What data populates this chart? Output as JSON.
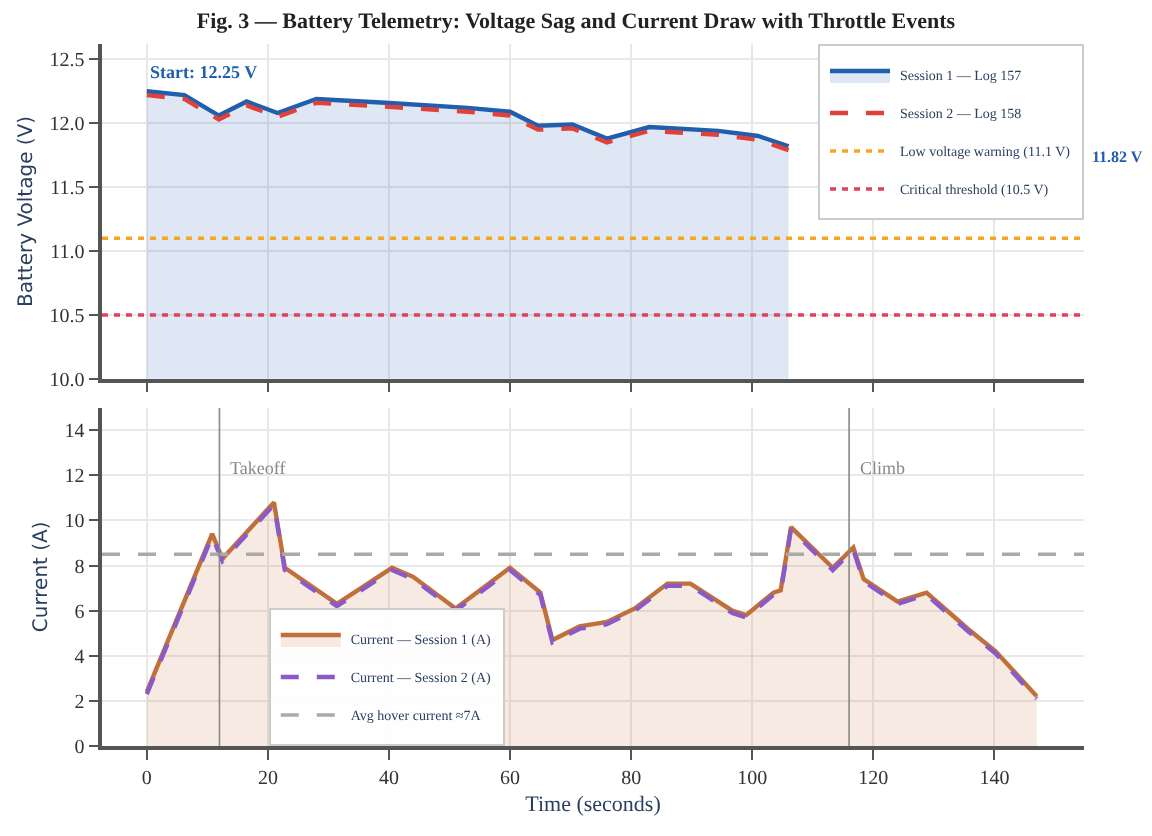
{
  "chart_data": [
    {
      "type": "line",
      "title": "Fig. 3 — Battery Telemetry: Voltage Sag and Current Draw with Throttle Events",
      "ylabel": "Battery Voltage (V)",
      "x": [
        0,
        6.2,
        11.9,
        16.5,
        21.6,
        28,
        39.4,
        53,
        60,
        64.6,
        70.3,
        76,
        83,
        94.4,
        101,
        106
      ],
      "series": [
        {
          "name": "Session 1 — Log 157",
          "color": "#1f5fad",
          "type": "area",
          "values": [
            12.25,
            12.22,
            12.06,
            12.17,
            12.08,
            12.19,
            12.16,
            12.12,
            12.09,
            11.98,
            11.99,
            11.88,
            11.97,
            11.94,
            11.9,
            11.82
          ]
        },
        {
          "name": "Session 2 — Log 158",
          "color": "#e0413a",
          "line_style": "dashed",
          "values": [
            12.22,
            12.19,
            12.03,
            12.14,
            12.05,
            12.16,
            12.13,
            12.09,
            12.06,
            11.95,
            11.96,
            11.85,
            11.94,
            11.91,
            11.87,
            11.79
          ]
        }
      ],
      "ref_lines": [
        {
          "axis": "y",
          "value": 11.1,
          "label": "Low voltage warning (11.1 V)",
          "color": "#f5a623",
          "line_style": "dotted"
        },
        {
          "axis": "y",
          "value": 10.5,
          "label": "Critical threshold (10.5 V)",
          "color": "#e0415a",
          "line_style": "dotted"
        }
      ],
      "annotations": [
        {
          "text": "Start: 12.25 V",
          "x": 0,
          "y": 12.25
        },
        "11.82 V"
      ],
      "xlim": [
        -7.4,
        154.8
      ],
      "xticks": [
        0,
        20,
        40,
        60,
        80,
        100,
        120,
        140
      ],
      "ylim": [
        10,
        12.62
      ],
      "yticks": [
        {
          "value": 10,
          "label": "10.0"
        },
        {
          "value": 10.5,
          "label": "10.5"
        },
        {
          "value": 11,
          "label": "11.0"
        },
        {
          "value": 11.5,
          "label": "11.5"
        },
        {
          "value": 12,
          "label": "12.0"
        },
        {
          "value": 12.5,
          "label": "12.5"
        }
      ],
      "tick_labels": "y",
      "grid": true,
      "legend": "top right"
    },
    {
      "type": "line",
      "xlabel": "Time (seconds)",
      "ylabel": "Current (A)",
      "x": [
        0,
        10.8,
        12.5,
        21,
        22.8,
        31.4,
        40.5,
        44,
        51,
        60,
        65,
        67,
        71.5,
        76,
        80.6,
        86,
        89.8,
        96.7,
        99,
        103.5,
        104.7,
        106.4,
        113.3,
        116.7,
        118.4,
        124,
        128.8,
        135.6,
        140.2,
        147
      ],
      "series": [
        {
          "name": "Current — Session 1 (A)",
          "color": "#c0703a",
          "type": "area",
          "values": [
            2.4,
            9.4,
            8.3,
            10.8,
            7.9,
            6.3,
            7.9,
            7.5,
            6.1,
            7.9,
            6.8,
            4.7,
            5.3,
            5.5,
            6.1,
            7.2,
            7.2,
            6.0,
            5.8,
            6.8,
            6.9,
            9.7,
            7.9,
            8.8,
            7.4,
            6.4,
            6.8,
            5.2,
            4.2,
            2.2
          ]
        },
        {
          "name": "Current — Session 2 (A)",
          "color": "#8a5ac8",
          "line_style": "dashed",
          "values": [
            2.3,
            9.3,
            8.2,
            10.7,
            7.8,
            6.2,
            7.8,
            7.4,
            6.0,
            7.8,
            6.7,
            4.6,
            5.2,
            5.4,
            6.0,
            7.1,
            7.1,
            5.9,
            5.7,
            6.7,
            6.8,
            9.6,
            7.8,
            8.7,
            7.3,
            6.3,
            6.7,
            5.1,
            4.1,
            2.1
          ]
        }
      ],
      "ref_lines": [
        {
          "axis": "y",
          "value": 8.5,
          "label": "Avg hover current ≈7A",
          "color": "#aaaaaa",
          "line_style": "dashed"
        },
        {
          "axis": "x",
          "value": 12,
          "label": "Takeoff",
          "color": "#888888",
          "line_style": "solid"
        },
        {
          "axis": "x",
          "value": 116,
          "label": "Climb",
          "color": "#888888",
          "line_style": "solid"
        }
      ],
      "xlim": [
        -7.4,
        154.8
      ],
      "xticks": [
        0,
        20,
        40,
        60,
        80,
        100,
        120,
        140
      ],
      "ylim": [
        0,
        15
      ],
      "yticks": [
        0,
        2,
        4,
        6,
        8,
        10,
        12,
        14
      ],
      "grid": true,
      "legend": "bottom"
    }
  ]
}
